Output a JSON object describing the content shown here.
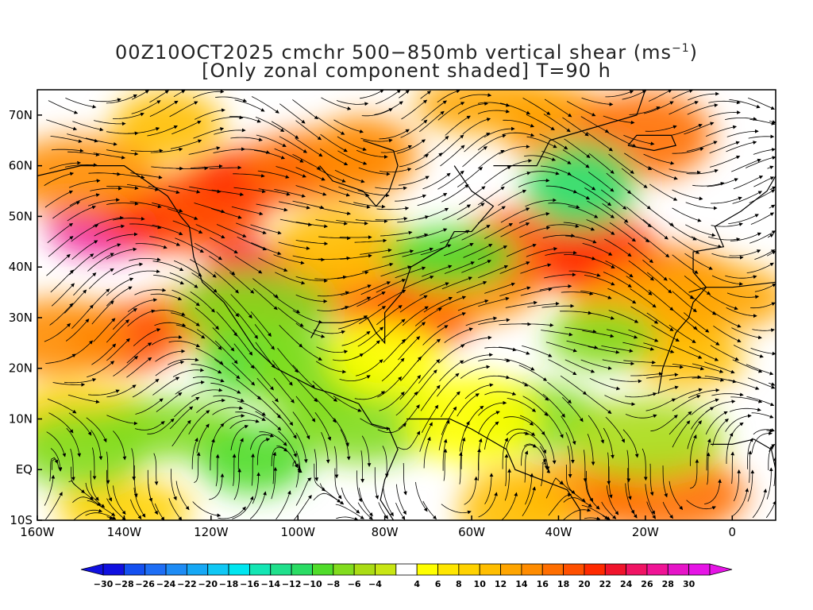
{
  "title": {
    "line1_prefix": "00Z10OCT2025 cmchr 500−850mb vertical shear (ms",
    "line1_sup": "−1",
    "line1_suffix": ")",
    "line2": "[Only zonal component shaded] T=90 h"
  },
  "axes": {
    "lat_labels": [
      "70N",
      "60N",
      "50N",
      "40N",
      "30N",
      "20N",
      "10N",
      "EQ",
      "10S"
    ],
    "lon_labels": [
      "160W",
      "140W",
      "120W",
      "100W",
      "80W",
      "60W",
      "40W",
      "20W",
      "0"
    ]
  },
  "colorbar": {
    "labels": [
      "−30",
      "−28",
      "−26",
      "−24",
      "−22",
      "−20",
      "−18",
      "−16",
      "−14",
      "−12",
      "−10",
      "−8",
      "−6",
      "−4",
      "4",
      "6",
      "8",
      "10",
      "12",
      "14",
      "16",
      "18",
      "20",
      "22",
      "24",
      "26",
      "28",
      "30"
    ],
    "colors": [
      "#1010e0",
      "#1450f0",
      "#1e6ef5",
      "#1e8cf5",
      "#16a8f5",
      "#10c8f5",
      "#00e6f0",
      "#14e6b4",
      "#20e08c",
      "#2adc64",
      "#50dc2a",
      "#82dc1e",
      "#aadc14",
      "#c8e614",
      "#ffffff",
      "#ffff00",
      "#ffe600",
      "#ffd200",
      "#ffbe00",
      "#ffa500",
      "#ff8c00",
      "#ff6e00",
      "#ff5000",
      "#ff2a00",
      "#f0142c",
      "#f01464",
      "#f01496",
      "#e614c8",
      "#e614e6"
    ]
  },
  "shear_blobs": [
    {
      "lon": -145,
      "lat": 48,
      "v": 26
    },
    {
      "lon": -130,
      "lat": 50,
      "v": 20
    },
    {
      "lon": -150,
      "lat": 58,
      "v": 14
    },
    {
      "lon": -120,
      "lat": 52,
      "v": 18
    },
    {
      "lon": -108,
      "lat": 58,
      "v": 20
    },
    {
      "lon": -95,
      "lat": 60,
      "v": 16
    },
    {
      "lon": -85,
      "lat": 62,
      "v": 14
    },
    {
      "lon": -108,
      "lat": 36,
      "v": 22
    },
    {
      "lon": -120,
      "lat": 30,
      "v": 16
    },
    {
      "lon": -140,
      "lat": 26,
      "v": 18
    },
    {
      "lon": -155,
      "lat": 26,
      "v": 14
    },
    {
      "lon": -80,
      "lat": 36,
      "v": 16
    },
    {
      "lon": -72,
      "lat": 30,
      "v": 20
    },
    {
      "lon": -60,
      "lat": 36,
      "v": 14
    },
    {
      "lon": -45,
      "lat": 44,
      "v": 18
    },
    {
      "lon": -30,
      "lat": 42,
      "v": 20
    },
    {
      "lon": -15,
      "lat": 38,
      "v": 16
    },
    {
      "lon": -5,
      "lat": 34,
      "v": 12
    },
    {
      "lon": -40,
      "lat": 68,
      "v": 14
    },
    {
      "lon": -20,
      "lat": 66,
      "v": 16
    },
    {
      "lon": -55,
      "lat": 72,
      "v": 12
    },
    {
      "lon": -130,
      "lat": 68,
      "v": 10
    },
    {
      "lon": -90,
      "lat": 44,
      "v": 10
    },
    {
      "lon": -20,
      "lat": 30,
      "v": 12
    },
    {
      "lon": -10,
      "lat": 22,
      "v": 10
    },
    {
      "lon": -35,
      "lat": -5,
      "v": 14
    },
    {
      "lon": -15,
      "lat": -5,
      "v": 16
    },
    {
      "lon": -50,
      "lat": -8,
      "v": 10
    },
    {
      "lon": -140,
      "lat": -8,
      "v": 8
    },
    {
      "lon": -150,
      "lat": 10,
      "v": 8
    },
    {
      "lon": -110,
      "lat": 22,
      "v": -10
    },
    {
      "lon": -95,
      "lat": 18,
      "v": -8
    },
    {
      "lon": -130,
      "lat": 8,
      "v": -8
    },
    {
      "lon": -110,
      "lat": 2,
      "v": -10
    },
    {
      "lon": -150,
      "lat": 4,
      "v": -8
    },
    {
      "lon": -85,
      "lat": 10,
      "v": -8
    },
    {
      "lon": -30,
      "lat": 26,
      "v": -8
    },
    {
      "lon": -45,
      "lat": 10,
      "v": -8
    },
    {
      "lon": -20,
      "lat": 6,
      "v": -6
    },
    {
      "lon": -35,
      "lat": 56,
      "v": -12
    },
    {
      "lon": -65,
      "lat": 42,
      "v": -10
    },
    {
      "lon": -110,
      "lat": 32,
      "v": -8
    },
    {
      "lon": -80,
      "lat": 22,
      "v": 4
    },
    {
      "lon": -60,
      "lat": 10,
      "v": 4
    }
  ]
}
